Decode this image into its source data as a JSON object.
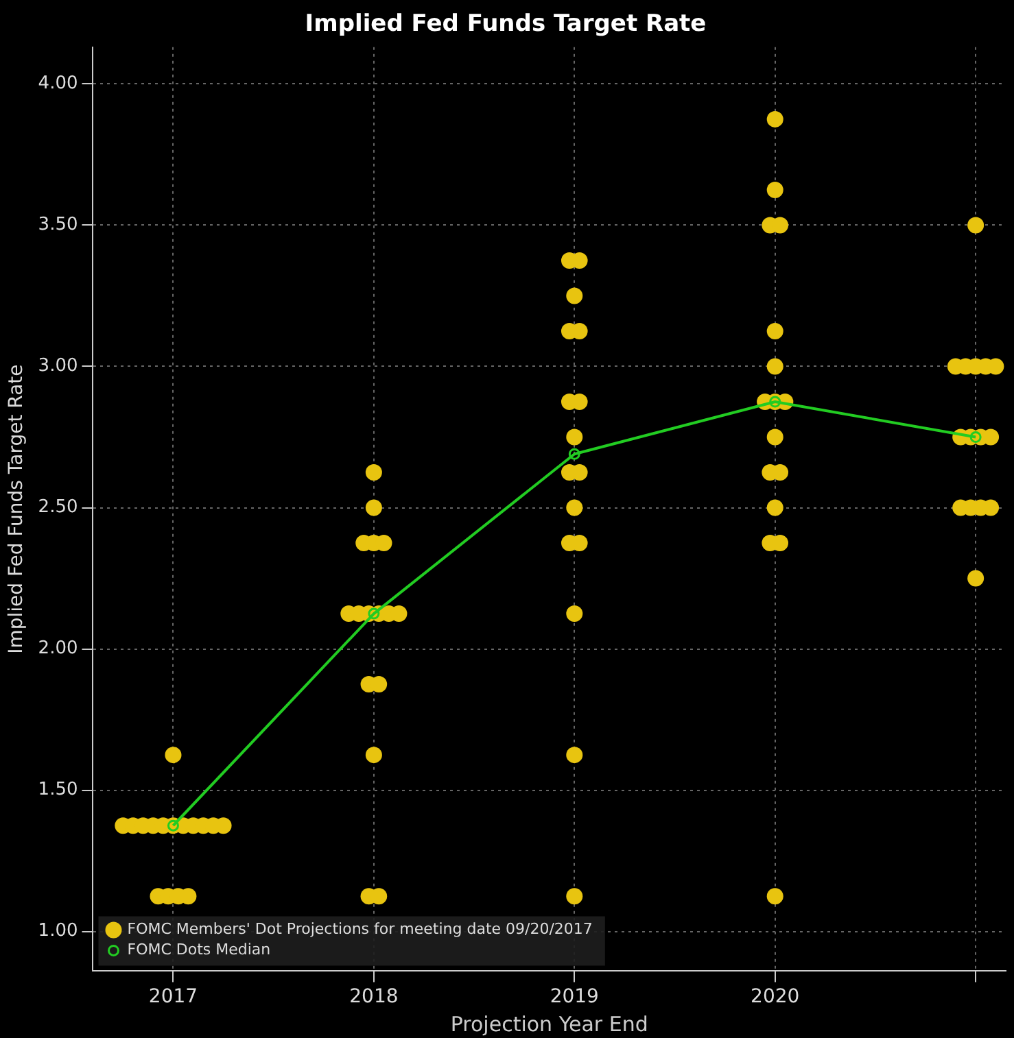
{
  "chart_data": {
    "type": "scatter",
    "title": "Implied Fed Funds Target Rate",
    "xlabel": "Projection Year End",
    "ylabel": "Implied Fed Funds Target Rate",
    "xlim": [
      2016.6,
      2021.15
    ],
    "xticks": [
      2017,
      2018,
      2019,
      2020,
      {
        "value": 2021,
        "label": null
      }
    ],
    "ylim": [
      0.86,
      4.13
    ],
    "yticks": [
      {
        "value": 1,
        "label": "1.00"
      },
      {
        "value": 1.5,
        "label": "1.50"
      },
      {
        "value": 2,
        "label": "2.00"
      },
      {
        "value": 2.5,
        "label": "2.50"
      },
      {
        "value": 3,
        "label": "3.00"
      },
      {
        "value": 3.5,
        "label": "3.50"
      },
      {
        "value": 4,
        "label": "4.00"
      }
    ],
    "grid": true,
    "legend": "bottom left",
    "marker": "circle",
    "series": [
      {
        "name": "FOMC Members' Dot Projections for meeting date 09/20/2017",
        "color": "#e8c410",
        "x": [
          2016.925,
          2016.975,
          2017.025,
          2017.075,
          2016.75,
          2016.8,
          2016.85,
          2016.9,
          2016.95,
          2017,
          2017.05,
          2017.1,
          2017.15,
          2017.2,
          2017.25,
          2017,
          2017.975,
          2018.025,
          2018,
          2017.975,
          2018.025,
          2017.875,
          2017.925,
          2017.975,
          2018.025,
          2018.075,
          2018.125,
          2017.95,
          2018,
          2018.05,
          2018,
          2018,
          2019,
          2019,
          2019,
          2018.975,
          2019.025,
          2019,
          2018.975,
          2019.025,
          2019,
          2018.975,
          2019.025,
          2018.975,
          2019.025,
          2019,
          2018.975,
          2019.025,
          2020,
          2019.975,
          2020.025,
          2020,
          2019.975,
          2020.025,
          2020,
          2019.95,
          2020,
          2020.05,
          2020,
          2020,
          2019.975,
          2020.025,
          2020,
          2020,
          2021,
          2020.925,
          2020.975,
          2021.025,
          2021.075,
          2020.925,
          2020.975,
          2021.025,
          2021.075,
          2020.9,
          2020.95,
          2021,
          2021.05,
          2021.1,
          2021
        ],
        "values": [
          1.125,
          1.125,
          1.125,
          1.125,
          1.375,
          1.375,
          1.375,
          1.375,
          1.375,
          1.375,
          1.375,
          1.375,
          1.375,
          1.375,
          1.375,
          1.625,
          1.125,
          1.125,
          1.625,
          1.875,
          1.875,
          2.125,
          2.125,
          2.125,
          2.125,
          2.125,
          2.125,
          2.375,
          2.375,
          2.375,
          2.5,
          2.625,
          1.125,
          1.625,
          2.125,
          2.375,
          2.375,
          2.5,
          2.625,
          2.625,
          2.75,
          2.875,
          2.875,
          3.125,
          3.125,
          3.25,
          3.375,
          3.375,
          1.125,
          2.375,
          2.375,
          2.5,
          2.625,
          2.625,
          2.75,
          2.875,
          2.875,
          2.875,
          3.0,
          3.125,
          3.5,
          3.5,
          3.625,
          3.875,
          2.25,
          2.5,
          2.5,
          2.5,
          2.5,
          2.75,
          2.75,
          2.75,
          2.75,
          3.0,
          3.0,
          3.0,
          3.0,
          3.0,
          3.5
        ]
      },
      {
        "name": "FOMC Dots Median",
        "type": "line",
        "color": "#22cc22",
        "x": [
          2017,
          2018,
          2019,
          2020,
          2021
        ],
        "values": [
          1.375,
          2.125,
          2.69,
          2.875,
          2.75
        ]
      }
    ]
  }
}
